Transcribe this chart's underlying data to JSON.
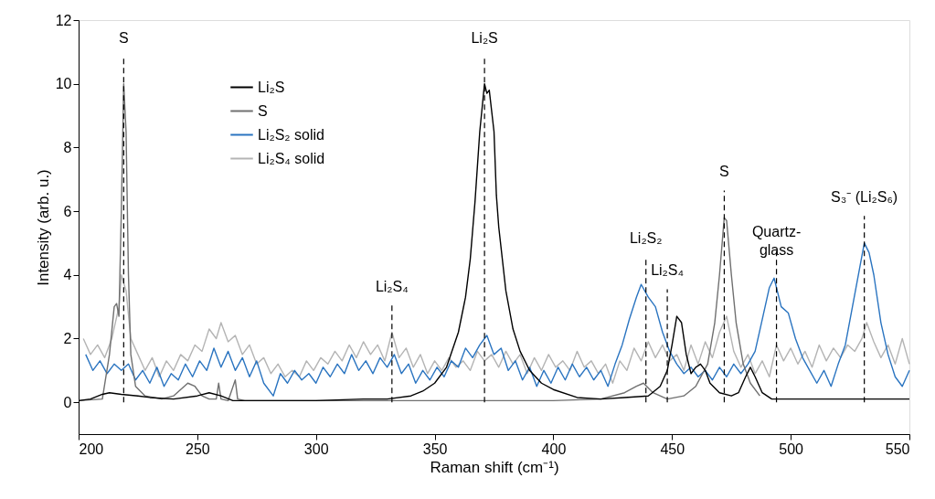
{
  "chart_data": {
    "type": "line",
    "xlabel": "Raman shift (cm⁻¹)",
    "ylabel": "Intensity (arb. u.)",
    "xlim": [
      200,
      550
    ],
    "xticks": [
      200,
      250,
      300,
      350,
      400,
      450,
      500,
      550
    ],
    "ylim": [
      -1,
      12
    ],
    "yticks": [
      0,
      2,
      4,
      6,
      8,
      10,
      12
    ],
    "grid": false,
    "legend": "top left",
    "marker": "none",
    "line_style": "solid",
    "series": [
      {
        "name": "Li₂S",
        "color": "#000000",
        "x": [
          200,
          205,
          210,
          213,
          218,
          225,
          230,
          240,
          250,
          255,
          260,
          265,
          280,
          300,
          320,
          330,
          340,
          345,
          350,
          355,
          360,
          363,
          365,
          367,
          369,
          371,
          372,
          373,
          375,
          376,
          377,
          380,
          383,
          386,
          390,
          395,
          400,
          410,
          420,
          430,
          440,
          445,
          448,
          450,
          452,
          454,
          456,
          458,
          460,
          462,
          464,
          466,
          470,
          475,
          478,
          481,
          483,
          485,
          488,
          492,
          500,
          520,
          550
        ],
        "values": [
          0.05,
          0.1,
          0.25,
          0.3,
          0.25,
          0.2,
          0.15,
          0.1,
          0.2,
          0.3,
          0.2,
          0.05,
          0.05,
          0.05,
          0.1,
          0.1,
          0.2,
          0.35,
          0.6,
          1.1,
          2.2,
          3.3,
          4.5,
          6.3,
          8.5,
          10.0,
          9.7,
          9.8,
          8.5,
          6.5,
          5.5,
          3.5,
          2.3,
          1.6,
          1.0,
          0.6,
          0.4,
          0.15,
          0.1,
          0.15,
          0.2,
          0.5,
          1.0,
          1.8,
          2.7,
          2.5,
          1.5,
          0.9,
          1.1,
          1.2,
          1.0,
          0.6,
          0.3,
          0.2,
          0.3,
          0.8,
          1.1,
          0.8,
          0.3,
          0.1,
          0.1,
          0.1,
          0.1
        ]
      },
      {
        "name": "S",
        "color": "#707070",
        "x": [
          200,
          210,
          213,
          215,
          216,
          217,
          218,
          219,
          220,
          221,
          222,
          224,
          228,
          235,
          240,
          246,
          249,
          252,
          255,
          258,
          259,
          260,
          263,
          266,
          267,
          270,
          300,
          350,
          400,
          420,
          430,
          435,
          438,
          442,
          448,
          455,
          460,
          465,
          468,
          470,
          472,
          473,
          475,
          477,
          480,
          483,
          487
        ],
        "values": [
          0.05,
          0.1,
          1.5,
          3.0,
          3.1,
          2.7,
          6.0,
          10.0,
          8.5,
          4.0,
          1.5,
          0.5,
          0.2,
          0.1,
          0.2,
          0.6,
          0.5,
          0.2,
          0.1,
          0.1,
          0.6,
          0.1,
          0.05,
          0.7,
          0.1,
          0.05,
          0.05,
          0.05,
          0.05,
          0.1,
          0.3,
          0.5,
          0.6,
          0.3,
          0.1,
          0.2,
          0.5,
          1.2,
          2.5,
          4.0,
          5.8,
          5.7,
          4.0,
          2.5,
          1.2,
          0.6,
          0.2
        ]
      },
      {
        "name": "Li₂S₂ solid",
        "color": "#2a74c0",
        "x": [
          203,
          206,
          209,
          212,
          215,
          218,
          221,
          224,
          227,
          230,
          233,
          236,
          239,
          242,
          245,
          248,
          251,
          254,
          257,
          260,
          263,
          266,
          269,
          272,
          275,
          278,
          282,
          285,
          288,
          291,
          294,
          297,
          300,
          303,
          306,
          309,
          312,
          315,
          318,
          321,
          324,
          327,
          330,
          333,
          336,
          339,
          342,
          345,
          348,
          351,
          354,
          357,
          360,
          363,
          366,
          369,
          372,
          375,
          378,
          381,
          384,
          387,
          390,
          393,
          396,
          399,
          402,
          405,
          408,
          411,
          414,
          417,
          420,
          423,
          426,
          429,
          432,
          435,
          437,
          440,
          443,
          446,
          449,
          452,
          455,
          458,
          461,
          464,
          467,
          470,
          473,
          476,
          479,
          482,
          485,
          488,
          491,
          493,
          496,
          499,
          502,
          505,
          508,
          511,
          514,
          517,
          520,
          523,
          526,
          529,
          531,
          533,
          535,
          538,
          541,
          544,
          547,
          550
        ],
        "values": [
          1.5,
          1.0,
          1.3,
          0.9,
          1.2,
          1.0,
          1.2,
          0.7,
          1.0,
          0.6,
          1.1,
          0.5,
          0.9,
          0.7,
          1.2,
          0.8,
          1.3,
          1.0,
          1.7,
          1.1,
          1.6,
          1.0,
          1.4,
          0.8,
          1.3,
          0.6,
          0.2,
          0.9,
          0.6,
          1.0,
          0.7,
          0.9,
          0.6,
          1.1,
          0.8,
          1.2,
          0.9,
          1.5,
          1.0,
          1.3,
          0.9,
          1.4,
          1.1,
          1.5,
          0.9,
          1.2,
          0.6,
          1.0,
          0.7,
          1.1,
          0.8,
          1.3,
          1.1,
          1.7,
          1.4,
          1.8,
          2.1,
          1.5,
          1.7,
          1.0,
          1.3,
          0.7,
          1.1,
          0.5,
          1.0,
          0.6,
          1.1,
          0.7,
          1.2,
          0.8,
          1.1,
          0.7,
          1.0,
          0.5,
          1.2,
          1.8,
          2.6,
          3.3,
          3.7,
          3.3,
          3.0,
          2.2,
          1.6,
          1.2,
          0.9,
          1.1,
          0.8,
          1.0,
          0.7,
          1.1,
          0.8,
          1.2,
          0.9,
          1.2,
          1.6,
          2.6,
          3.6,
          3.9,
          3.0,
          2.8,
          2.0,
          1.4,
          1.0,
          0.6,
          1.0,
          0.5,
          1.2,
          1.8,
          3.0,
          4.2,
          5.0,
          4.7,
          4.0,
          2.5,
          1.5,
          0.8,
          0.5,
          1.0
        ]
      },
      {
        "name": "Li₂S₄ solid",
        "color": "#b4b4b4",
        "x": [
          202,
          205,
          208,
          211,
          214,
          217,
          218,
          220,
          222,
          225,
          228,
          231,
          234,
          237,
          240,
          243,
          246,
          249,
          252,
          255,
          258,
          260,
          263,
          266,
          269,
          272,
          275,
          278,
          281,
          284,
          287,
          290,
          293,
          296,
          299,
          302,
          305,
          308,
          311,
          314,
          317,
          320,
          323,
          326,
          329,
          332,
          335,
          338,
          341,
          344,
          347,
          350,
          353,
          356,
          359,
          362,
          365,
          368,
          371,
          374,
          377,
          380,
          383,
          386,
          389,
          392,
          395,
          398,
          401,
          404,
          407,
          410,
          413,
          416,
          419,
          422,
          425,
          428,
          431,
          434,
          437,
          440,
          443,
          446,
          449,
          452,
          455,
          458,
          461,
          464,
          467,
          470,
          473,
          476,
          479,
          482,
          485,
          488,
          491,
          494,
          497,
          500,
          503,
          506,
          509,
          512,
          515,
          518,
          521,
          524,
          527,
          530,
          532,
          535,
          538,
          541,
          544,
          547,
          550
        ],
        "values": [
          2.0,
          1.5,
          1.8,
          1.4,
          2.0,
          3.0,
          4.0,
          3.5,
          2.0,
          1.5,
          1.0,
          1.4,
          0.8,
          1.3,
          1.0,
          1.5,
          1.3,
          1.8,
          1.6,
          2.3,
          2.0,
          2.5,
          1.9,
          2.1,
          1.5,
          1.8,
          1.2,
          1.4,
          0.9,
          1.2,
          0.8,
          1.0,
          0.8,
          1.3,
          1.0,
          1.4,
          1.2,
          1.6,
          1.3,
          1.8,
          1.4,
          1.9,
          1.5,
          1.8,
          1.3,
          2.2,
          1.4,
          1.7,
          1.1,
          1.5,
          0.9,
          1.3,
          1.0,
          1.4,
          1.1,
          1.3,
          1.0,
          1.6,
          1.3,
          1.5,
          1.1,
          1.6,
          1.2,
          1.5,
          0.9,
          1.4,
          1.0,
          1.5,
          1.1,
          1.3,
          1.0,
          1.6,
          1.1,
          1.3,
          0.9,
          1.2,
          0.6,
          1.3,
          1.0,
          1.7,
          1.3,
          1.9,
          1.4,
          1.8,
          1.3,
          1.5,
          1.0,
          1.8,
          1.2,
          1.9,
          1.4,
          2.2,
          2.7,
          1.6,
          1.1,
          1.5,
          0.9,
          1.3,
          0.8,
          1.8,
          1.3,
          1.7,
          1.2,
          1.6,
          1.1,
          1.8,
          1.3,
          1.7,
          1.4,
          1.8,
          1.6,
          2.0,
          2.5,
          1.9,
          1.4,
          1.8,
          1.2,
          2.0,
          1.2
        ]
      }
    ],
    "ref_lines": [
      {
        "axis": "x",
        "value": 219,
        "label": "S",
        "color": "#000000",
        "line_style": "dashed"
      },
      {
        "axis": "x",
        "value": 332,
        "label": "Li₂S₄",
        "color": "#000000",
        "line_style": "dashed"
      },
      {
        "axis": "x",
        "value": 371,
        "label": "Li₂S",
        "color": "#000000",
        "line_style": "dashed"
      },
      {
        "axis": "x",
        "value": 439,
        "label": "Li₂S₂",
        "color": "#000000",
        "line_style": "dashed"
      },
      {
        "axis": "x",
        "value": 448,
        "label": "Li₂S₄",
        "color": "#000000",
        "line_style": "dashed"
      },
      {
        "axis": "x",
        "value": 472,
        "label": "S",
        "color": "#000000",
        "line_style": "dashed"
      },
      {
        "axis": "x",
        "value": 494,
        "label": "Quartz-glass",
        "color": "#000000",
        "line_style": "dashed"
      },
      {
        "axis": "x",
        "value": 531,
        "label": "S₃⁻ (Li₂S₆)",
        "color": "#000000",
        "line_style": "dashed"
      }
    ]
  }
}
